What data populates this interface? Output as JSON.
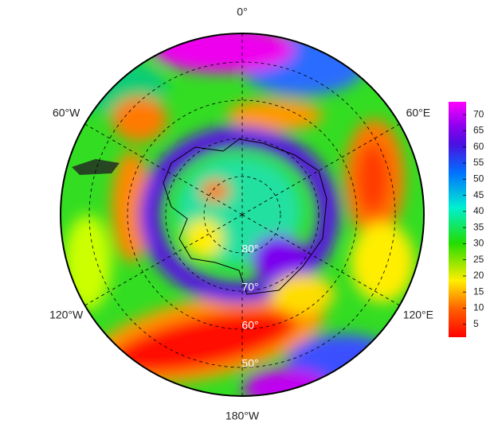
{
  "longitude_labels": [
    {
      "value": 0,
      "label": "0°"
    },
    {
      "value": 60,
      "label": "60°E"
    },
    {
      "value": 120,
      "label": "120°E"
    },
    {
      "value": 180,
      "label": "180°W"
    },
    {
      "value": -120,
      "label": "120°W"
    },
    {
      "value": -60,
      "label": "60°W"
    }
  ],
  "latitude_labels": [
    {
      "value": 80,
      "label": "80°"
    },
    {
      "value": 70,
      "label": "70°"
    },
    {
      "value": 60,
      "label": "60°"
    },
    {
      "value": 50,
      "label": "50°"
    }
  ],
  "colorbar": {
    "range": [
      1,
      74
    ],
    "ticks": [
      5,
      10,
      15,
      20,
      25,
      30,
      35,
      40,
      45,
      50,
      55,
      60,
      65,
      70
    ]
  }
}
